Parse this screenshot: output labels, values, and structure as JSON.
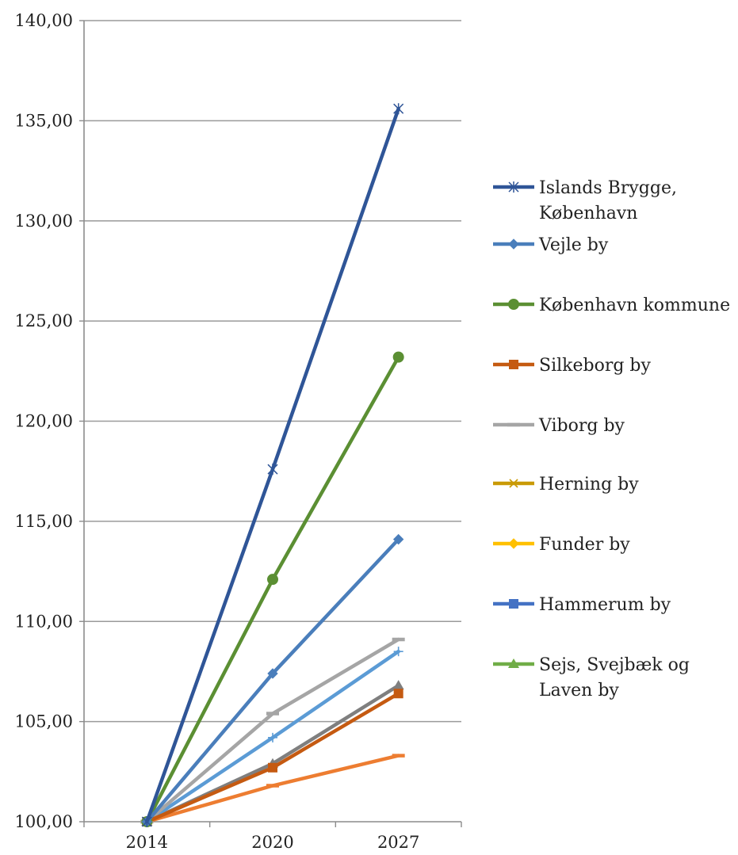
{
  "chart_data": {
    "type": "line",
    "title": "",
    "xlabel": "",
    "ylabel": "",
    "categories": [
      "2014",
      "2020",
      "2027"
    ],
    "ylim": [
      100,
      140
    ],
    "yticks": [
      "100,00",
      "105,00",
      "110,00",
      "115,00",
      "120,00",
      "125,00",
      "130,00",
      "135,00",
      "140,00"
    ],
    "grid": "horizontal",
    "legend_position": "right",
    "series": [
      {
        "name": "Islands Brygge, København",
        "legend_lines": [
          "Islands Brygge,",
          "København"
        ],
        "values": [
          100,
          117.6,
          135.6
        ],
        "color": "#2f5597",
        "marker": "star",
        "in_legend": true
      },
      {
        "name": "Vejle by",
        "legend_lines": [
          "Vejle by"
        ],
        "values": [
          100,
          107.4,
          114.1
        ],
        "color": "#4a7ebb",
        "marker": "diamond",
        "in_legend": true
      },
      {
        "name": "København kommune",
        "legend_lines": [
          "København kommune"
        ],
        "values": [
          100,
          112.1,
          123.2
        ],
        "color": "#5b8f33",
        "marker": "circle",
        "in_legend": true
      },
      {
        "name": "Silkeborg by",
        "legend_lines": [
          "Silkeborg by"
        ],
        "values": [
          100,
          102.7,
          106.4
        ],
        "color": "#c55a11",
        "marker": "square",
        "in_legend": true
      },
      {
        "name": "Viborg by",
        "legend_lines": [
          "Viborg by"
        ],
        "values": [
          100,
          105.4,
          109.1
        ],
        "color": "#a5a5a5",
        "marker": "dash",
        "in_legend": true
      },
      {
        "name": "Herning by",
        "legend_lines": [
          "Herning by"
        ],
        "values": [
          null,
          null,
          null
        ],
        "color": "#c99a06",
        "marker": "x",
        "in_legend": true
      },
      {
        "name": "Funder by",
        "legend_lines": [
          "Funder by"
        ],
        "values": [
          null,
          null,
          null
        ],
        "color": "#ffc000",
        "marker": "diamond",
        "in_legend": true
      },
      {
        "name": "Hammerum by",
        "legend_lines": [
          "Hammerum by"
        ],
        "values": [
          null,
          null,
          null
        ],
        "color": "#4472c4",
        "marker": "square",
        "in_legend": true
      },
      {
        "name": "Sejs, Svejbæk og Laven by",
        "legend_lines": [
          "Sejs, Svejbæk og",
          "Laven by"
        ],
        "values": [
          null,
          null,
          null
        ],
        "color": "#70ad47",
        "marker": "triangle",
        "in_legend": true
      },
      {
        "name": "",
        "legend_lines": [],
        "values": [
          100,
          104.2,
          108.5
        ],
        "color": "#5b9bd5",
        "marker": "plus",
        "in_legend": false
      },
      {
        "name": "",
        "legend_lines": [],
        "values": [
          100,
          102.9,
          106.8
        ],
        "color": "#7f7f7f",
        "marker": "triangle",
        "in_legend": false
      },
      {
        "name": "",
        "legend_lines": [],
        "values": [
          100,
          101.8,
          103.3
        ],
        "color": "#ed7d31",
        "marker": "dash",
        "in_legend": false
      }
    ]
  }
}
